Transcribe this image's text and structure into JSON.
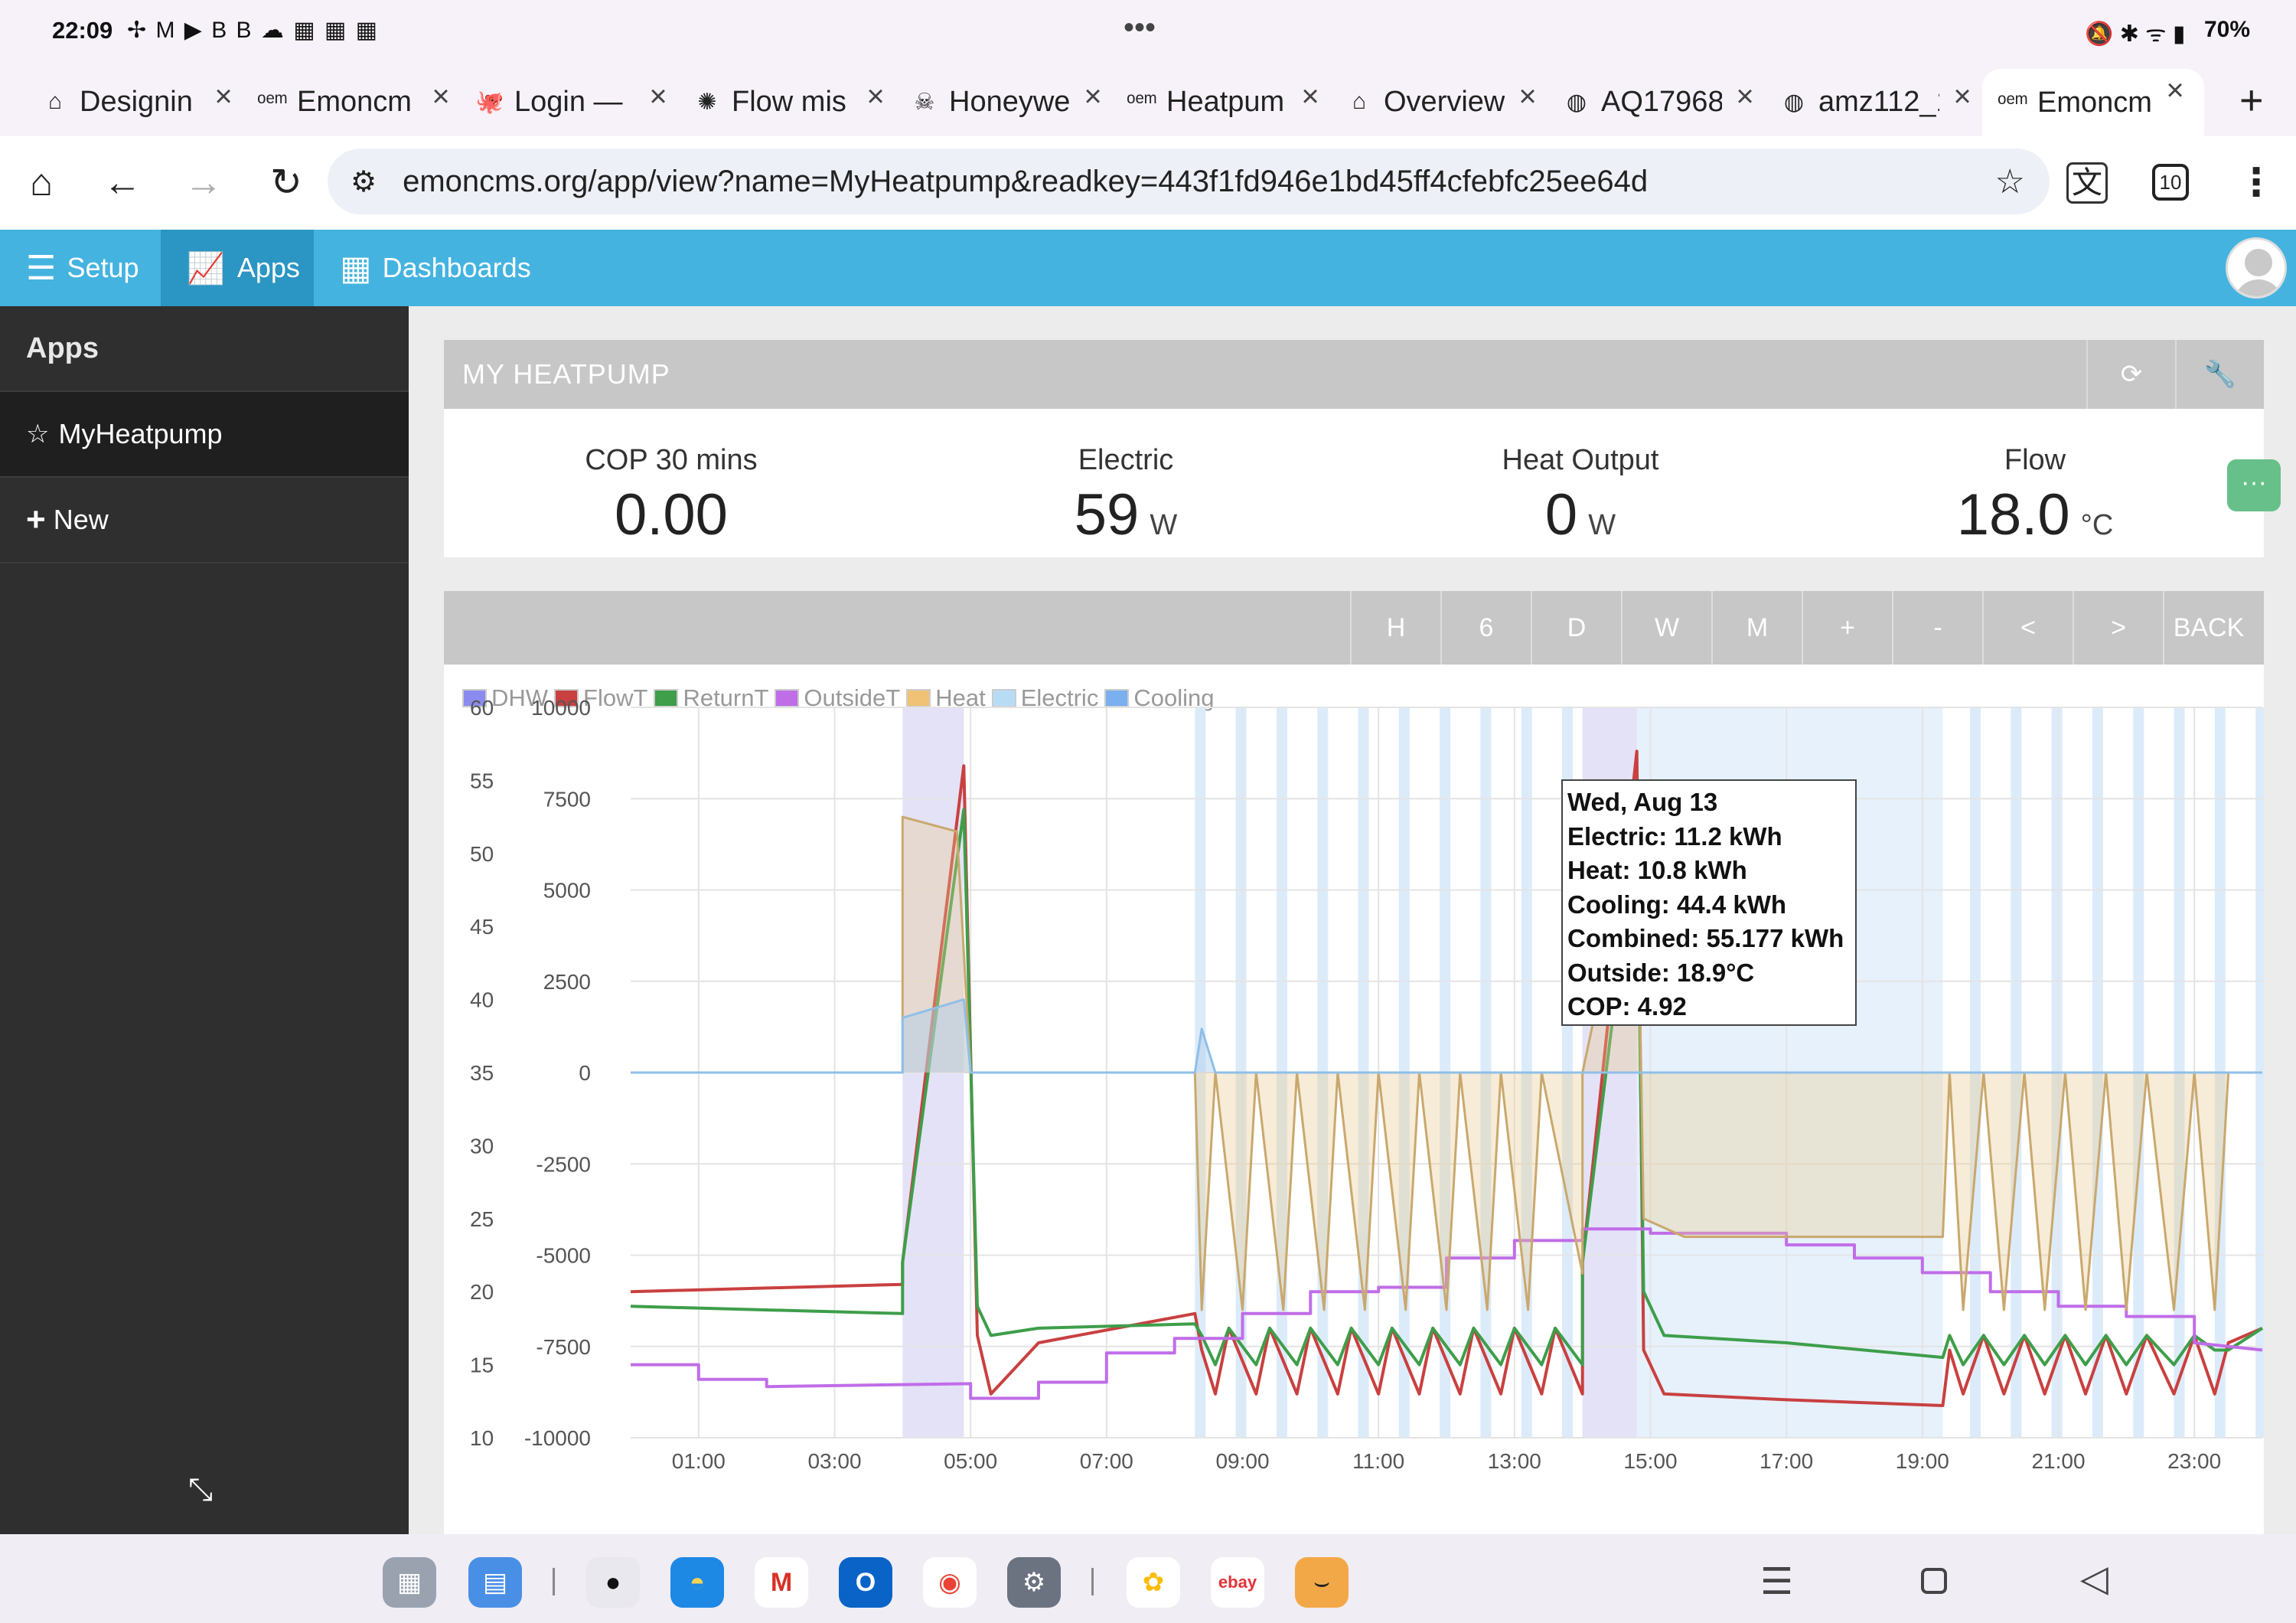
{
  "status_bar": {
    "time": "22:09",
    "notif_icons": "✢ M ▶ B B ☁ ▦ ▦ ▦",
    "center_dots": "•••",
    "battery": "70%"
  },
  "tabs": [
    {
      "label": "Designin",
      "icon": "house-icon"
    },
    {
      "label": "Emoncm",
      "icon": "oem-icon"
    },
    {
      "label": "Login —",
      "icon": "octopus-icon"
    },
    {
      "label": "Flow mis",
      "icon": "openai-icon"
    },
    {
      "label": "Honeywe",
      "icon": "skull-icon"
    },
    {
      "label": "Heatpum",
      "icon": "oem-icon"
    },
    {
      "label": "Overview",
      "icon": "home-assistant-icon"
    },
    {
      "label": "AQ17968",
      "icon": "globe-icon"
    },
    {
      "label": "amz112_1",
      "icon": "globe-icon"
    },
    {
      "label": "Emoncm",
      "icon": "oem-icon"
    }
  ],
  "address_bar": {
    "url": "emoncms.org/app/view?name=MyHeatpump&readkey=443f1fd946e1bd45ff4cfebfc25ee64d",
    "tab_count": "10"
  },
  "menu": {
    "setup": "Setup",
    "apps": "Apps",
    "dashboards": "Dashboards"
  },
  "sidebar": {
    "title": "Apps",
    "items": [
      {
        "label": "MyHeatpump"
      },
      {
        "label": "New"
      }
    ]
  },
  "panel": {
    "title": "MY HEATPUMP"
  },
  "stats": [
    {
      "label": "COP 30 mins",
      "value": "0.00",
      "unit": ""
    },
    {
      "label": "Electric",
      "value": "59",
      "unit": "W"
    },
    {
      "label": "Heat Output",
      "value": "0",
      "unit": "W"
    },
    {
      "label": "Flow",
      "value": "18.0",
      "unit": "°C"
    }
  ],
  "range_buttons": [
    "H",
    "6",
    "D",
    "W",
    "M",
    "+",
    "-",
    "<",
    ">",
    "BACK"
  ],
  "tooltip": {
    "date": "Wed, Aug 13",
    "electric": "Electric: 11.2 kWh",
    "heat": "Heat: 10.8 kWh",
    "cooling": "Cooling: 44.4 kWh",
    "combined": "Combined: 55.177 kWh",
    "outside": "Outside: 18.9°C",
    "cop": "COP: 4.92"
  },
  "colors": {
    "menu": "#44b3e0",
    "dhw": "#8b8bef",
    "flowT": "#c94040",
    "returnT": "#3e9e4a",
    "outsideT": "#c06de8",
    "heat": "#efc275",
    "electric": "#b9dcf6",
    "cooling": "#7aaff0"
  },
  "chart_data": {
    "type": "line",
    "legend": [
      "DHW",
      "FlowT",
      "ReturnT",
      "OutsideT",
      "Heat",
      "Electric",
      "Cooling"
    ],
    "x_ticks": [
      "01:00",
      "03:00",
      "05:00",
      "07:00",
      "09:00",
      "11:00",
      "13:00",
      "15:00",
      "17:00",
      "19:00",
      "21:00",
      "23:00"
    ],
    "y_left_ticks": [
      "60",
      "55",
      "50",
      "45",
      "40",
      "35",
      "30",
      "25",
      "20",
      "15",
      "10"
    ],
    "y_right_ticks": [
      "10000",
      "7500",
      "5000",
      "2500",
      "0",
      "-2500",
      "-5000",
      "-7500",
      "-10000"
    ],
    "y_left_range": [
      10,
      60
    ],
    "y_right_range": [
      -10000,
      10000
    ],
    "x_range_hours": [
      0,
      24
    ],
    "dhw_periods": [
      [
        4.0,
        4.9
      ],
      [
        14.0,
        14.8
      ]
    ],
    "series": [
      {
        "name": "FlowT",
        "points": [
          [
            0,
            20
          ],
          [
            4.0,
            20.5
          ],
          [
            4.0,
            22
          ],
          [
            4.9,
            56
          ],
          [
            5.1,
            17
          ],
          [
            5.3,
            13
          ],
          [
            6,
            16.5
          ],
          [
            8.3,
            18.5
          ],
          [
            8.4,
            16
          ],
          [
            8.6,
            13
          ],
          [
            8.8,
            17.5
          ],
          [
            9.2,
            13
          ],
          [
            9.4,
            17.5
          ],
          [
            9.8,
            13
          ],
          [
            10,
            17.5
          ],
          [
            10.4,
            13
          ],
          [
            10.6,
            17.5
          ],
          [
            11,
            13
          ],
          [
            11.2,
            17.5
          ],
          [
            11.6,
            13
          ],
          [
            11.8,
            17.5
          ],
          [
            12.2,
            13
          ],
          [
            12.4,
            17.5
          ],
          [
            12.8,
            13
          ],
          [
            13,
            17.5
          ],
          [
            13.4,
            13
          ],
          [
            13.6,
            17.5
          ],
          [
            14,
            13
          ],
          [
            14,
            22
          ],
          [
            14.8,
            57
          ],
          [
            14.9,
            16
          ],
          [
            15.2,
            13
          ],
          [
            17,
            12.6
          ],
          [
            19.3,
            12.2
          ],
          [
            19.4,
            16
          ],
          [
            19.6,
            13
          ],
          [
            19.9,
            17
          ],
          [
            20.2,
            13
          ],
          [
            20.5,
            17
          ],
          [
            20.8,
            13
          ],
          [
            21.1,
            17
          ],
          [
            21.4,
            13
          ],
          [
            21.7,
            17
          ],
          [
            22,
            13
          ],
          [
            22.3,
            17
          ],
          [
            22.7,
            13
          ],
          [
            23,
            17
          ],
          [
            23.3,
            13
          ],
          [
            23.5,
            16.5
          ],
          [
            24,
            17.5
          ]
        ]
      },
      {
        "name": "ReturnT",
        "points": [
          [
            0,
            19
          ],
          [
            4.0,
            18.5
          ],
          [
            4.0,
            22
          ],
          [
            4.9,
            53
          ],
          [
            5.1,
            19
          ],
          [
            5.3,
            17
          ],
          [
            6,
            17.5
          ],
          [
            8.3,
            17.8
          ],
          [
            8.4,
            17
          ],
          [
            8.6,
            15
          ],
          [
            8.8,
            17.5
          ],
          [
            9.2,
            15
          ],
          [
            9.4,
            17.5
          ],
          [
            9.8,
            15
          ],
          [
            10,
            17.5
          ],
          [
            10.4,
            15
          ],
          [
            10.6,
            17.5
          ],
          [
            11,
            15
          ],
          [
            11.2,
            17.5
          ],
          [
            11.6,
            15
          ],
          [
            11.8,
            17.5
          ],
          [
            12.2,
            15
          ],
          [
            12.4,
            17.5
          ],
          [
            12.8,
            15
          ],
          [
            13,
            17.5
          ],
          [
            13.4,
            15
          ],
          [
            13.6,
            17.5
          ],
          [
            14,
            15
          ],
          [
            14,
            22
          ],
          [
            14.8,
            52
          ],
          [
            14.9,
            20
          ],
          [
            15.2,
            17
          ],
          [
            17,
            16.5
          ],
          [
            19.3,
            15.5
          ],
          [
            19.4,
            17
          ],
          [
            19.6,
            15
          ],
          [
            19.9,
            17
          ],
          [
            20.2,
            15
          ],
          [
            20.5,
            17
          ],
          [
            20.8,
            15
          ],
          [
            21.1,
            17
          ],
          [
            21.4,
            15
          ],
          [
            21.7,
            17
          ],
          [
            22,
            15
          ],
          [
            22.3,
            17
          ],
          [
            22.7,
            15
          ],
          [
            23,
            17
          ],
          [
            23.3,
            16
          ],
          [
            23.5,
            16
          ],
          [
            24,
            17.5
          ]
        ]
      },
      {
        "name": "OutsideT",
        "points": [
          [
            0,
            15
          ],
          [
            1,
            15
          ],
          [
            1,
            14
          ],
          [
            2,
            14
          ],
          [
            2,
            13.5
          ],
          [
            5,
            13.7
          ],
          [
            5,
            12.7
          ],
          [
            6,
            12.7
          ],
          [
            6,
            13.8
          ],
          [
            7,
            13.8
          ],
          [
            7,
            15.8
          ],
          [
            8,
            15.8
          ],
          [
            8,
            16.8
          ],
          [
            9,
            16.8
          ],
          [
            9,
            18.5
          ],
          [
            10,
            18.5
          ],
          [
            10,
            20
          ],
          [
            11,
            20
          ],
          [
            11,
            20.3
          ],
          [
            12,
            20.3
          ],
          [
            12,
            22.3
          ],
          [
            13,
            22.3
          ],
          [
            13,
            23.5
          ],
          [
            14,
            23.5
          ],
          [
            14,
            24.3
          ],
          [
            15,
            24.3
          ],
          [
            15,
            24
          ],
          [
            17,
            24
          ],
          [
            17,
            23.2
          ],
          [
            18,
            23.2
          ],
          [
            18,
            22.3
          ],
          [
            19,
            22.3
          ],
          [
            19,
            21.3
          ],
          [
            20,
            21.3
          ],
          [
            20,
            20
          ],
          [
            21,
            20
          ],
          [
            21,
            19
          ],
          [
            22,
            19
          ],
          [
            22,
            18.3
          ],
          [
            23,
            18.3
          ],
          [
            23,
            16.5
          ],
          [
            24,
            16
          ]
        ]
      },
      {
        "name": "Heat",
        "points": [
          [
            0,
            0
          ],
          [
            4.0,
            0
          ],
          [
            4.0,
            7000
          ],
          [
            4.8,
            6600
          ],
          [
            5.0,
            0
          ],
          [
            8.3,
            0
          ],
          [
            8.4,
            -6500
          ],
          [
            8.6,
            0
          ],
          [
            9.0,
            -6500
          ],
          [
            9.2,
            0
          ],
          [
            9.6,
            -6500
          ],
          [
            9.8,
            0
          ],
          [
            10.2,
            -6500
          ],
          [
            10.4,
            0
          ],
          [
            10.8,
            -6500
          ],
          [
            11,
            0
          ],
          [
            11.4,
            -6500
          ],
          [
            11.6,
            0
          ],
          [
            12,
            -6500
          ],
          [
            12.2,
            0
          ],
          [
            12.6,
            -6500
          ],
          [
            12.8,
            0
          ],
          [
            13.2,
            -6500
          ],
          [
            13.4,
            0
          ],
          [
            14,
            -5500
          ],
          [
            14,
            0
          ],
          [
            14.8,
            7000
          ],
          [
            14.9,
            -4000
          ],
          [
            15.5,
            -4500
          ],
          [
            19.3,
            -4500
          ],
          [
            19.4,
            0
          ],
          [
            19.6,
            -6500
          ],
          [
            19.9,
            0
          ],
          [
            20.2,
            -6500
          ],
          [
            20.5,
            0
          ],
          [
            20.8,
            -6500
          ],
          [
            21.1,
            0
          ],
          [
            21.4,
            -6500
          ],
          [
            21.7,
            0
          ],
          [
            22,
            -6500
          ],
          [
            22.3,
            0
          ],
          [
            22.7,
            -6500
          ],
          [
            23,
            0
          ],
          [
            23.3,
            -6500
          ],
          [
            23.5,
            0
          ],
          [
            24,
            0
          ]
        ]
      },
      {
        "name": "Electric",
        "points": [
          [
            0,
            0
          ],
          [
            4.0,
            0
          ],
          [
            4.0,
            1500
          ],
          [
            4.9,
            2000
          ],
          [
            5.0,
            0
          ],
          [
            8.3,
            0
          ],
          [
            8.4,
            1200
          ],
          [
            8.6,
            0
          ],
          [
            24,
            0
          ]
        ]
      }
    ]
  }
}
